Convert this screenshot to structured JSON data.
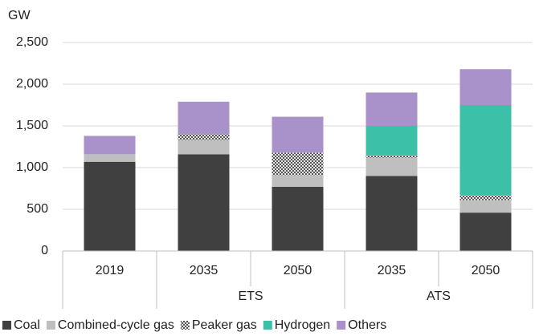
{
  "chart_data": {
    "type": "stacked_bar",
    "y_label": "GW",
    "categories": [
      "2019",
      "2035",
      "2050",
      "2035",
      "2050"
    ],
    "groups": [
      null,
      "ETS",
      "ETS",
      "ATS",
      "ATS"
    ],
    "series": [
      {
        "name": "Coal",
        "color": "#404040",
        "values": [
          1070,
          1160,
          770,
          900,
          460
        ]
      },
      {
        "name": "Combined-cycle gas",
        "color": "#bfbfbf",
        "values": [
          90,
          170,
          140,
          220,
          150
        ]
      },
      {
        "name": "Peaker gas",
        "color": "#808080",
        "pattern": "dots",
        "values": [
          0,
          70,
          270,
          30,
          60
        ]
      },
      {
        "name": "Hydrogen",
        "color": "#3cc1a8",
        "values": [
          0,
          0,
          0,
          350,
          1080
        ]
      },
      {
        "name": "Others",
        "color": "#a991c9",
        "values": [
          220,
          390,
          430,
          400,
          430
        ]
      }
    ],
    "ylim": [
      0,
      2500
    ],
    "yticks": [
      0,
      500,
      {
        "value": 1000,
        "label": "1,000"
      },
      {
        "value": 1500,
        "label": "1,500"
      },
      {
        "value": 2000,
        "label": "2,000"
      },
      {
        "value": 2500,
        "label": "2,500"
      }
    ],
    "grid": true,
    "legend": "bottom"
  }
}
